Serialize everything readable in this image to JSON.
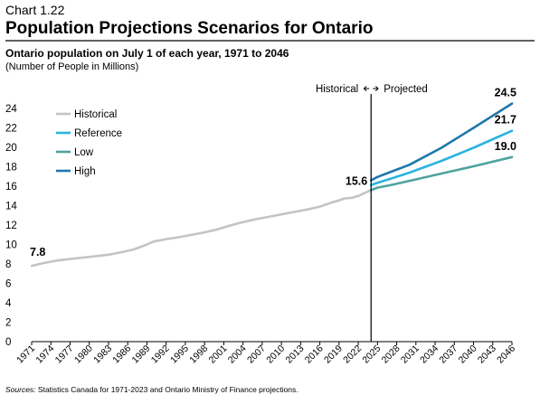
{
  "header": {
    "chart_number": "Chart 1.22",
    "title": "Population Projections Scenarios for Ontario",
    "subtitle": "Ontario population on July 1 of each year, 1971 to 2046",
    "unit_note": "(Number of People in Millions)"
  },
  "annotations": {
    "historical": "Historical",
    "projected": "Projected",
    "value_1971": "7.8",
    "value_2024": "15.6",
    "value_high_2046": "24.5",
    "value_ref_2046": "21.7",
    "value_low_2046": "19.0"
  },
  "footer": {
    "sources_label": "Sources:",
    "sources_text": " Statistics Canada for 1971-2023 and Ontario Ministry of Finance projections."
  },
  "colors": {
    "historical": "#c4c4c4",
    "reference": "#2ab4df",
    "low": "#4ea39e",
    "high": "#1e78ac",
    "axis": "#000000"
  },
  "chart_data": {
    "type": "line",
    "title": "Population Projections Scenarios for Ontario",
    "ylabel": "(Number of People in Millions)",
    "ylim": [
      0,
      24
    ],
    "yticks": [
      0,
      2,
      4,
      6,
      8,
      10,
      12,
      14,
      16,
      18,
      20,
      22,
      24
    ],
    "xlim": [
      1971,
      2046
    ],
    "xticks": [
      "1971",
      "1974",
      "1977",
      "1980",
      "1983",
      "1986",
      "1989",
      "1992",
      "1995",
      "1998",
      "2001",
      "2004",
      "2007",
      "2010",
      "2013",
      "2016",
      "2019",
      "2022",
      "2025",
      "2028",
      "2031",
      "2034",
      "2037",
      "2040",
      "2043",
      "2046"
    ],
    "divider_year": 2024,
    "legend_position": "top-left",
    "series": [
      {
        "name": "Historical",
        "color_key": "historical",
        "points": [
          [
            1971,
            7.8
          ],
          [
            1973,
            8.1
          ],
          [
            1975,
            8.35
          ],
          [
            1977,
            8.5
          ],
          [
            1979,
            8.65
          ],
          [
            1981,
            8.8
          ],
          [
            1983,
            8.95
          ],
          [
            1985,
            9.2
          ],
          [
            1987,
            9.5
          ],
          [
            1989,
            10.0
          ],
          [
            1990,
            10.3
          ],
          [
            1992,
            10.55
          ],
          [
            1994,
            10.75
          ],
          [
            1996,
            11.0
          ],
          [
            1998,
            11.25
          ],
          [
            2000,
            11.55
          ],
          [
            2002,
            11.95
          ],
          [
            2004,
            12.3
          ],
          [
            2006,
            12.6
          ],
          [
            2008,
            12.85
          ],
          [
            2010,
            13.1
          ],
          [
            2012,
            13.35
          ],
          [
            2014,
            13.6
          ],
          [
            2016,
            13.9
          ],
          [
            2018,
            14.35
          ],
          [
            2019,
            14.55
          ],
          [
            2020,
            14.75
          ],
          [
            2021,
            14.8
          ],
          [
            2022,
            15.0
          ],
          [
            2023,
            15.3
          ],
          [
            2024,
            15.6
          ]
        ]
      },
      {
        "name": "Reference",
        "color_key": "reference",
        "points": [
          [
            2024,
            16.1
          ],
          [
            2025,
            16.35
          ],
          [
            2027,
            16.75
          ],
          [
            2030,
            17.4
          ],
          [
            2035,
            18.6
          ],
          [
            2040,
            19.95
          ],
          [
            2046,
            21.7
          ]
        ]
      },
      {
        "name": "Low",
        "color_key": "low",
        "points": [
          [
            2024,
            15.6
          ],
          [
            2025,
            15.85
          ],
          [
            2027,
            16.1
          ],
          [
            2030,
            16.55
          ],
          [
            2035,
            17.3
          ],
          [
            2040,
            18.05
          ],
          [
            2046,
            19.0
          ]
        ]
      },
      {
        "name": "High",
        "color_key": "high",
        "points": [
          [
            2024,
            16.6
          ],
          [
            2025,
            16.95
          ],
          [
            2027,
            17.45
          ],
          [
            2030,
            18.2
          ],
          [
            2035,
            19.95
          ],
          [
            2040,
            22.0
          ],
          [
            2046,
            24.5
          ]
        ]
      }
    ]
  }
}
